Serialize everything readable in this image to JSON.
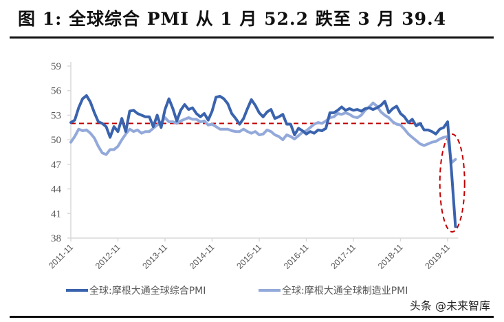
{
  "title": "图 1: 全球综合 PMI 从 1 月 52.2 跌至 3 月 39.4",
  "watermark": "头条 @未来智库",
  "colors": {
    "composite": "#3A63AE",
    "manufacturing": "#93A9DA",
    "reference_line": "#C00000",
    "axis": "#D9D9D9",
    "label": "#595959"
  },
  "legend": [
    {
      "label": "全球:摩根大通全球综合PMI",
      "color": "#3A63AE"
    },
    {
      "label": "全球:摩根大通全球制造业PMI",
      "color": "#93A9DA"
    }
  ],
  "chart_data": {
    "type": "line",
    "title": "图 1: 全球综合 PMI 从 1 月 52.2 跌至 3 月 39.4",
    "xlabel": "",
    "ylabel": "",
    "ylim": [
      38,
      59
    ],
    "yticks": [
      59,
      56,
      53,
      50,
      47,
      44,
      41,
      38
    ],
    "xticks": [
      "2011-11",
      "2012-11",
      "2013-11",
      "2014-11",
      "2015-11",
      "2016-11",
      "2017-11",
      "2018-11",
      "2019-11"
    ],
    "x_start": "2011-11",
    "x_end": "2020-03",
    "grid": false,
    "legend_position": "bottom",
    "annotations": [
      {
        "type": "hline",
        "value": 52.0,
        "style": "dashed",
        "color": "#C00000",
        "from": "2011-11",
        "to": "2019-05"
      },
      {
        "type": "ellipse",
        "style": "dashed",
        "color": "#C00000",
        "around": "2020-01 to 2020-03"
      }
    ],
    "series": [
      {
        "name": "全球:摩根大通全球综合PMI",
        "values": [
          52.1,
          52.4,
          53.9,
          55.0,
          55.4,
          54.6,
          53.3,
          52.2,
          52.0,
          51.6,
          50.3,
          51.6,
          51.0,
          52.6,
          51.0,
          53.5,
          53.6,
          53.2,
          53.0,
          52.8,
          52.8,
          51.6,
          53.0,
          51.5,
          53.7,
          55.0,
          53.8,
          52.3,
          53.6,
          54.3,
          53.7,
          53.9,
          53.2,
          52.8,
          53.2,
          52.4,
          53.5,
          55.2,
          55.3,
          55.0,
          54.4,
          53.2,
          52.6,
          51.9,
          52.6,
          53.8,
          54.9,
          54.2,
          53.3,
          52.8,
          53.4,
          53.7,
          52.6,
          52.8,
          53.1,
          51.9,
          51.9,
          50.6,
          51.4,
          51.1,
          50.7,
          51.0,
          50.8,
          51.2,
          51.1,
          51.4,
          53.3,
          53.3,
          53.6,
          54.0,
          53.6,
          53.8,
          53.6,
          53.7,
          53.5,
          53.8,
          53.9,
          53.7,
          53.9,
          54.2,
          54.7,
          53.3,
          53.8,
          54.1,
          53.2,
          52.8,
          52.1,
          52.5,
          51.7,
          52.0,
          51.2,
          51.2,
          51.0,
          50.7,
          51.3,
          51.5,
          52.2,
          46.1,
          39.4
        ]
      },
      {
        "name": "全球:摩根大通全球制造业PMI",
        "values": [
          49.7,
          50.4,
          51.3,
          51.1,
          51.2,
          50.8,
          50.2,
          49.2,
          48.4,
          48.2,
          48.8,
          48.8,
          49.2,
          50.0,
          50.7,
          51.3,
          51.0,
          51.2,
          50.8,
          51.0,
          51.0,
          51.4,
          51.8,
          52.1,
          52.7,
          52.2,
          52.2,
          52.0,
          52.3,
          52.5,
          52.7,
          52.5,
          52.5,
          52.2,
          52.3,
          51.8,
          51.9,
          51.6,
          51.3,
          51.3,
          51.3,
          51.1,
          51.0,
          51.0,
          51.3,
          51.0,
          50.8,
          51.0,
          50.6,
          50.7,
          51.2,
          51.0,
          50.6,
          50.4,
          50.0,
          50.6,
          50.4,
          50.1,
          50.5,
          50.9,
          51.1,
          51.5,
          51.9,
          52.1,
          52.0,
          52.3,
          52.7,
          52.8,
          53.2,
          53.1,
          53.3,
          53.1,
          52.8,
          52.7,
          53.0,
          53.6,
          54.0,
          54.5,
          54.1,
          53.4,
          53.0,
          52.7,
          52.2,
          51.9,
          51.8,
          51.3,
          50.7,
          50.3,
          49.9,
          49.5,
          49.3,
          49.5,
          49.7,
          49.8,
          50.1,
          50.3,
          50.4,
          47.2,
          47.6
        ]
      }
    ]
  }
}
